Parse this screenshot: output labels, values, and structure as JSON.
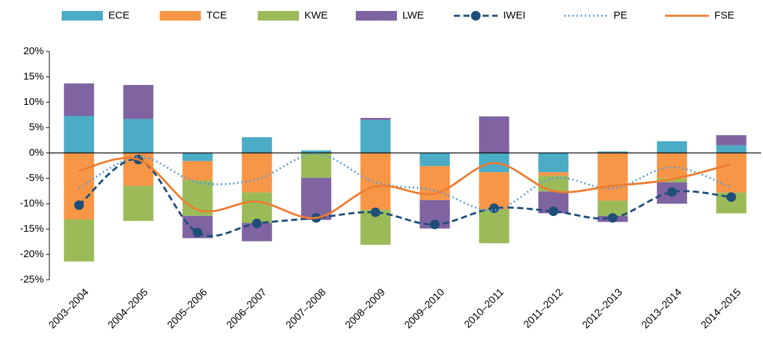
{
  "chart_data": {
    "type": "bar",
    "categories": [
      "2003–2004",
      "2004–2005",
      "2005–2006",
      "2006–2007",
      "2007–2008",
      "2008–2009",
      "2009–2010",
      "2010–2011",
      "2011–2012",
      "2012–2013",
      "2013–2014",
      "2014–2015"
    ],
    "series": [
      {
        "name": "ECE",
        "type": "bar",
        "color": "#4bacc6",
        "values": [
          7.3,
          6.7,
          -1.6,
          3.1,
          0.5,
          6.5,
          -2.6,
          -3.8,
          -3.8,
          0.3,
          2.3,
          1.5
        ]
      },
      {
        "name": "TCE",
        "type": "bar",
        "color": "#f79646",
        "values": [
          -13.1,
          -6.5,
          -3.8,
          -7.8,
          0,
          -11.2,
          -6.7,
          -7.3,
          -0.7,
          -9.4,
          -5.1,
          -7.8
        ]
      },
      {
        "name": "KWE",
        "type": "bar",
        "color": "#9bbb59",
        "values": [
          -8.3,
          -6.9,
          -7.0,
          -6.0,
          -4.9,
          -6.9,
          0,
          -6.7,
          -3.1,
          -3.0,
          -0.7,
          -4.1
        ]
      },
      {
        "name": "LWE",
        "type": "bar",
        "color": "#8064a2",
        "values": [
          6.4,
          6.7,
          -4.4,
          -3.6,
          -8.3,
          0.4,
          -5.6,
          7.2,
          -4.3,
          -1.2,
          -4.2,
          2.0
        ]
      },
      {
        "name": "IWEI",
        "type": "line",
        "style": "dashed-marker",
        "color": "#1f4e79",
        "values": [
          -10.3,
          -1.3,
          -15.7,
          -13.9,
          -12.8,
          -11.7,
          -14.1,
          -10.9,
          -11.5,
          -12.8,
          -7.7,
          -8.7
        ]
      },
      {
        "name": "PE",
        "type": "line",
        "style": "dotted",
        "color": "#5b9bd5",
        "values": [
          -7.0,
          -0.8,
          -5.8,
          -5.2,
          -0.2,
          -5.8,
          -7.4,
          -11.3,
          -5.0,
          -7.0,
          -2.8,
          -6.8
        ]
      },
      {
        "name": "FSE",
        "type": "line",
        "style": "solid",
        "color": "#ed7d31",
        "values": [
          -3.5,
          -1.3,
          -11.2,
          -9.6,
          -12.8,
          -6.6,
          -8.0,
          -2.0,
          -7.5,
          -6.5,
          -5.2,
          -2.2
        ]
      }
    ],
    "ylim": [
      -25,
      20
    ],
    "yticks": [
      {
        "value": -25,
        "label": "-25%"
      },
      {
        "value": -20,
        "label": "-20%"
      },
      {
        "value": -15,
        "label": "-15%"
      },
      {
        "value": -10,
        "label": "-10%"
      },
      {
        "value": -5,
        "label": "-5%"
      },
      {
        "value": 0,
        "label": "0%"
      },
      {
        "value": 5,
        "label": "5%"
      },
      {
        "value": 10,
        "label": "10%"
      },
      {
        "value": 15,
        "label": "15%"
      },
      {
        "value": 20,
        "label": "20%"
      }
    ],
    "smooth": true,
    "legend": "top"
  }
}
